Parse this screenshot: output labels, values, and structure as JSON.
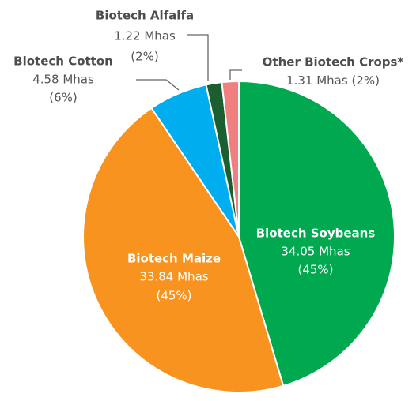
{
  "chart_data": {
    "type": "pie",
    "categories": [
      "Biotech Soybeans",
      "Biotech Maize",
      "Biotech Cotton",
      "Biotech Alfalfa",
      "Other Biotech Crops*"
    ],
    "values": [
      34.05,
      33.84,
      4.58,
      1.22,
      1.31
    ],
    "value_labels": [
      "34.05 Mhas",
      "33.84 Mhas",
      "4.58 Mhas",
      "1.22 Mhas",
      "1.31 Mhas"
    ],
    "percent_labels": [
      "(45%)",
      "(45%)",
      "(6%)",
      "(2%)",
      "(2%)"
    ],
    "colors": [
      "#00a94f",
      "#f7931e",
      "#00aeef",
      "#1b5e2f",
      "#f08080"
    ]
  }
}
